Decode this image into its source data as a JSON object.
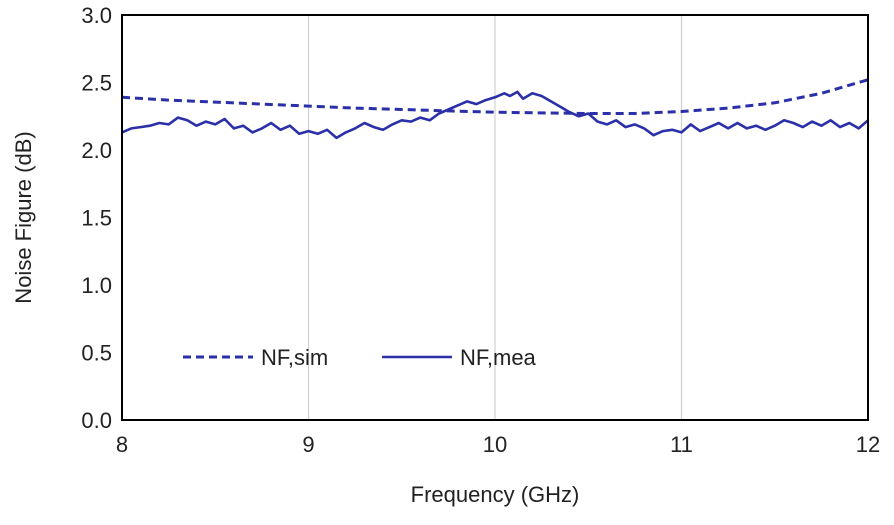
{
  "chart_data": {
    "type": "line",
    "title": "",
    "xlabel": "Frequency (GHz)",
    "ylabel": "Noise Figure (dB)",
    "xlim": [
      8,
      12
    ],
    "ylim": [
      0.0,
      3.0
    ],
    "x_ticks": [
      8,
      9,
      10,
      11,
      12
    ],
    "x_tick_labels": [
      "8",
      "9",
      "10",
      "11",
      "12"
    ],
    "y_ticks": [
      0.0,
      0.5,
      1.0,
      1.5,
      2.0,
      2.5,
      3.0
    ],
    "y_tick_labels": [
      "0.0",
      "0.5",
      "1.0",
      "1.5",
      "2.0",
      "2.5",
      "3.0"
    ],
    "grid": "vertical",
    "legend_position": "lower-left",
    "series": [
      {
        "name": "NF,sim",
        "style": "dashed",
        "color": "#2b2fa8",
        "points": [
          [
            8.0,
            2.39
          ],
          [
            8.25,
            2.37
          ],
          [
            8.5,
            2.355
          ],
          [
            8.75,
            2.34
          ],
          [
            9.0,
            2.325
          ],
          [
            9.25,
            2.31
          ],
          [
            9.5,
            2.3
          ],
          [
            9.75,
            2.29
          ],
          [
            10.0,
            2.28
          ],
          [
            10.25,
            2.275
          ],
          [
            10.5,
            2.27
          ],
          [
            10.75,
            2.27
          ],
          [
            11.0,
            2.285
          ],
          [
            11.25,
            2.31
          ],
          [
            11.5,
            2.35
          ],
          [
            11.75,
            2.42
          ],
          [
            12.0,
            2.52
          ]
        ]
      },
      {
        "name": "NF,mea",
        "style": "solid",
        "color": "#2b2fa8",
        "points": [
          [
            8.0,
            2.13
          ],
          [
            8.05,
            2.16
          ],
          [
            8.1,
            2.17
          ],
          [
            8.15,
            2.18
          ],
          [
            8.2,
            2.2
          ],
          [
            8.25,
            2.19
          ],
          [
            8.3,
            2.24
          ],
          [
            8.35,
            2.22
          ],
          [
            8.4,
            2.18
          ],
          [
            8.45,
            2.21
          ],
          [
            8.5,
            2.19
          ],
          [
            8.55,
            2.23
          ],
          [
            8.6,
            2.16
          ],
          [
            8.65,
            2.18
          ],
          [
            8.7,
            2.13
          ],
          [
            8.75,
            2.16
          ],
          [
            8.8,
            2.2
          ],
          [
            8.85,
            2.15
          ],
          [
            8.9,
            2.18
          ],
          [
            8.95,
            2.12
          ],
          [
            9.0,
            2.14
          ],
          [
            9.05,
            2.12
          ],
          [
            9.1,
            2.15
          ],
          [
            9.15,
            2.09
          ],
          [
            9.2,
            2.13
          ],
          [
            9.25,
            2.16
          ],
          [
            9.3,
            2.2
          ],
          [
            9.35,
            2.17
          ],
          [
            9.4,
            2.15
          ],
          [
            9.45,
            2.19
          ],
          [
            9.5,
            2.22
          ],
          [
            9.55,
            2.21
          ],
          [
            9.6,
            2.24
          ],
          [
            9.65,
            2.22
          ],
          [
            9.7,
            2.27
          ],
          [
            9.75,
            2.3
          ],
          [
            9.8,
            2.33
          ],
          [
            9.85,
            2.36
          ],
          [
            9.9,
            2.34
          ],
          [
            9.95,
            2.37
          ],
          [
            10.0,
            2.39
          ],
          [
            10.05,
            2.42
          ],
          [
            10.08,
            2.4
          ],
          [
            10.12,
            2.43
          ],
          [
            10.15,
            2.38
          ],
          [
            10.2,
            2.42
          ],
          [
            10.25,
            2.4
          ],
          [
            10.3,
            2.36
          ],
          [
            10.35,
            2.32
          ],
          [
            10.4,
            2.28
          ],
          [
            10.45,
            2.25
          ],
          [
            10.5,
            2.27
          ],
          [
            10.55,
            2.21
          ],
          [
            10.6,
            2.19
          ],
          [
            10.65,
            2.22
          ],
          [
            10.7,
            2.17
          ],
          [
            10.75,
            2.19
          ],
          [
            10.8,
            2.16
          ],
          [
            10.85,
            2.11
          ],
          [
            10.9,
            2.14
          ],
          [
            10.95,
            2.15
          ],
          [
            11.0,
            2.13
          ],
          [
            11.05,
            2.19
          ],
          [
            11.1,
            2.14
          ],
          [
            11.15,
            2.17
          ],
          [
            11.2,
            2.2
          ],
          [
            11.25,
            2.16
          ],
          [
            11.3,
            2.2
          ],
          [
            11.35,
            2.16
          ],
          [
            11.4,
            2.18
          ],
          [
            11.45,
            2.15
          ],
          [
            11.5,
            2.18
          ],
          [
            11.55,
            2.22
          ],
          [
            11.6,
            2.2
          ],
          [
            11.65,
            2.17
          ],
          [
            11.7,
            2.21
          ],
          [
            11.75,
            2.18
          ],
          [
            11.8,
            2.22
          ],
          [
            11.85,
            2.17
          ],
          [
            11.9,
            2.2
          ],
          [
            11.95,
            2.16
          ],
          [
            12.0,
            2.22
          ]
        ]
      }
    ]
  }
}
